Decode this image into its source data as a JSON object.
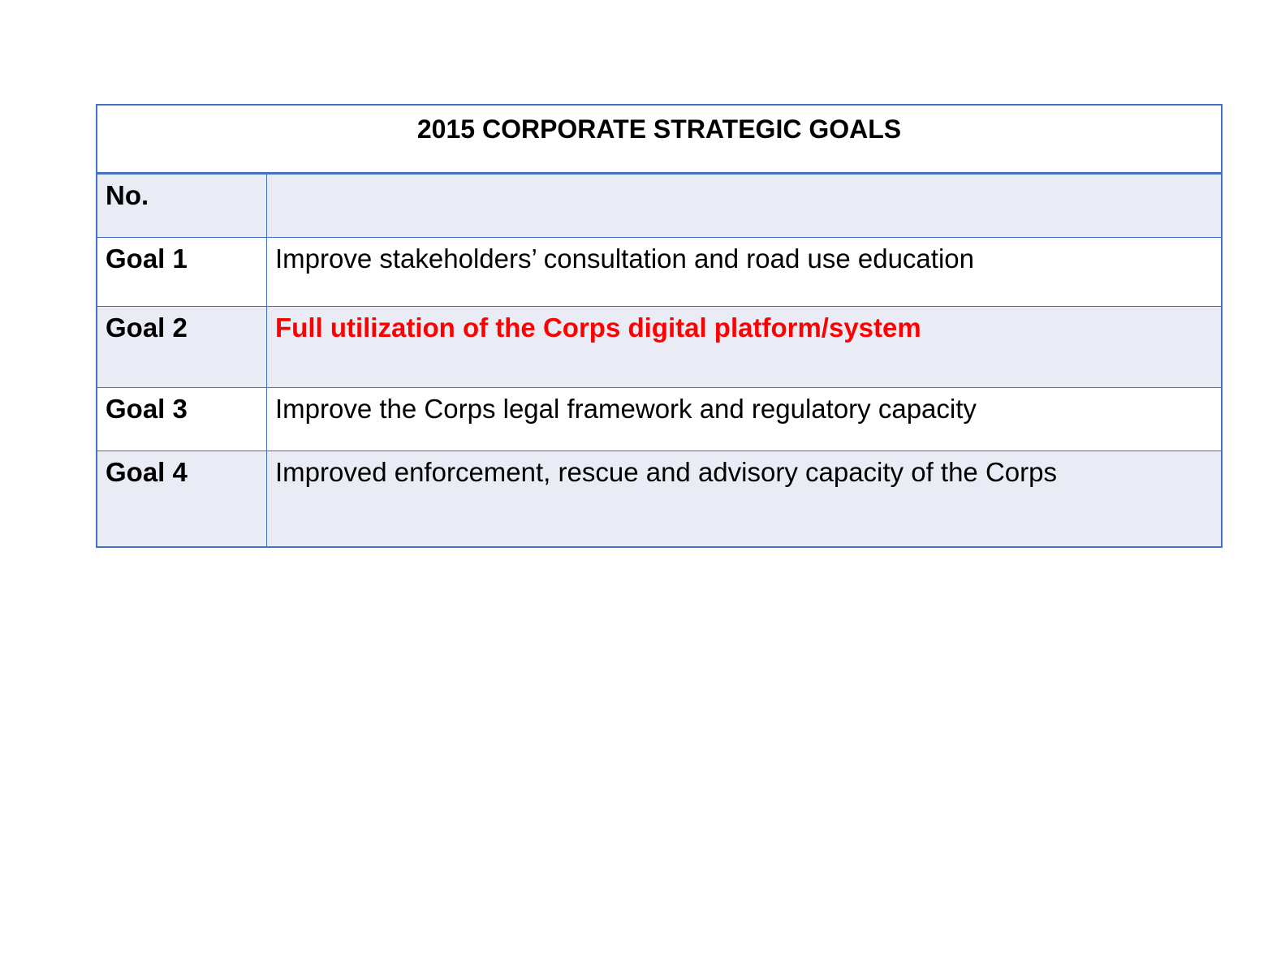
{
  "table": {
    "title": "2015 CORPORATE STRATEGIC GOALS",
    "header": {
      "no": "No.",
      "description": ""
    },
    "rows": [
      {
        "no": "Goal 1",
        "description": "Improve stakeholders’ consultation and  road use education"
      },
      {
        "no": "Goal 2",
        "description": "Full utilization of the Corps digital platform/system"
      },
      {
        "no": "Goal 3",
        "description": "Improve the Corps legal framework and regulatory capacity"
      },
      {
        "no": "Goal 4",
        "description": "Improved enforcement, rescue and advisory capacity of the Corps"
      }
    ]
  },
  "colors": {
    "border": "#4472C4",
    "band": "#E9EBF5",
    "highlight": "#FF0000"
  }
}
